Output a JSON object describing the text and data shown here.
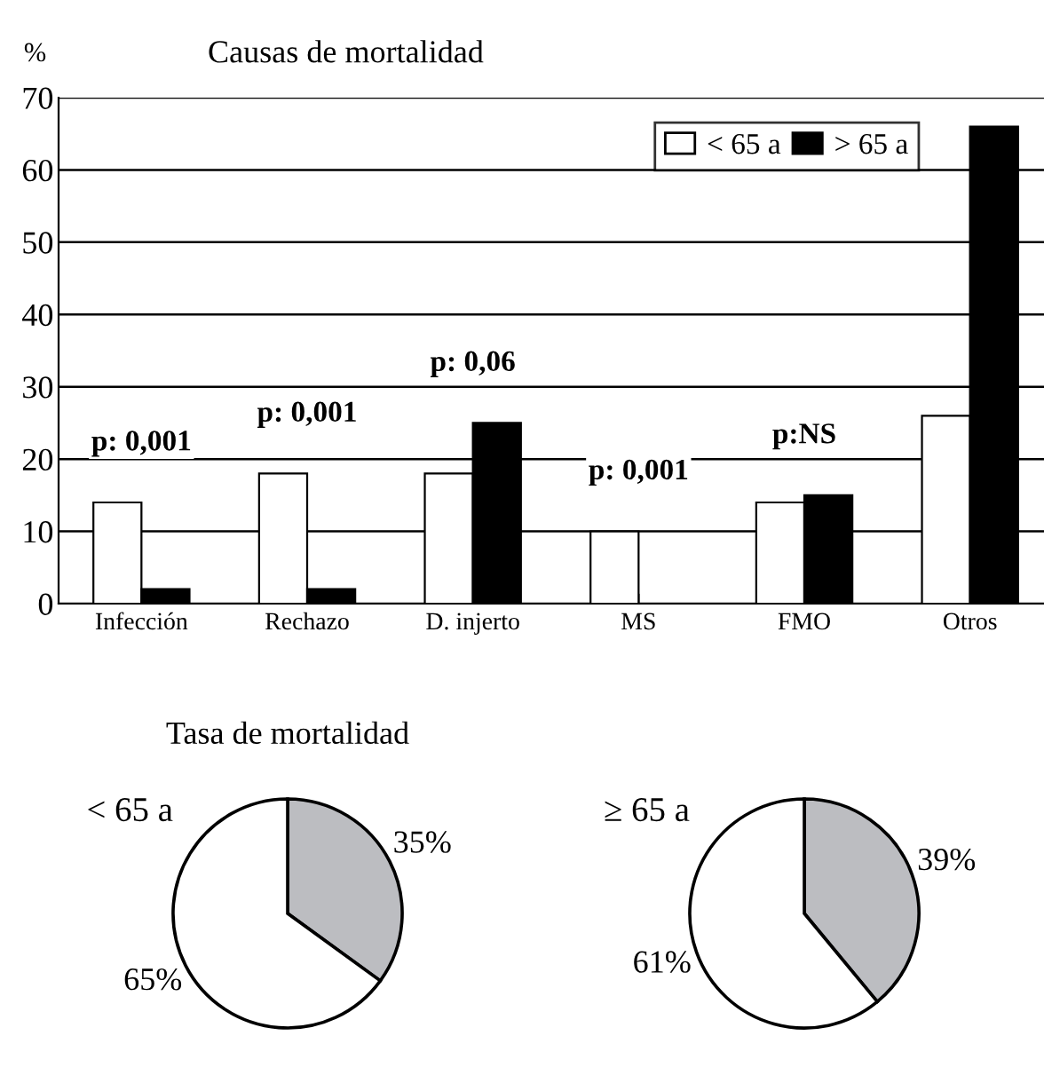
{
  "chart_data": [
    {
      "type": "bar",
      "title": "Causas de mortalidad",
      "ylabel": "%",
      "categories": [
        "Infección",
        "Rechazo",
        "D. injerto",
        "MS",
        "FMO",
        "Otros"
      ],
      "series": [
        {
          "name": "< 65 a",
          "color": "#ffffff",
          "values": [
            14,
            18,
            18,
            10,
            14,
            26
          ]
        },
        {
          "name": "> 65 a",
          "color": "#000000",
          "values": [
            2,
            2,
            25,
            0,
            15,
            66
          ]
        }
      ],
      "ylim": [
        0,
        70
      ],
      "yticks": [
        0,
        10,
        20,
        30,
        40,
        50,
        60,
        70
      ],
      "grid": "y",
      "legend": "top right",
      "annotations": [
        "p: 0,001",
        "p: 0,001",
        "p: 0,06",
        "p: 0,001",
        "p:NS"
      ]
    },
    {
      "type": "pie",
      "title": "Tasa de mortalidad",
      "subtitle": "< 65 a",
      "categories": [
        null,
        null
      ],
      "values": [
        35,
        65
      ],
      "colors": [
        "#bcbdc1",
        "#ffffff"
      ],
      "value_labels": [
        "35%",
        "65%"
      ]
    },
    {
      "type": "pie",
      "subtitle": "≥ 65 a",
      "categories": [
        null,
        null
      ],
      "values": [
        39,
        61
      ],
      "colors": [
        "#bcbdc1",
        "#ffffff"
      ],
      "value_labels": [
        "39%",
        "61%"
      ]
    }
  ]
}
